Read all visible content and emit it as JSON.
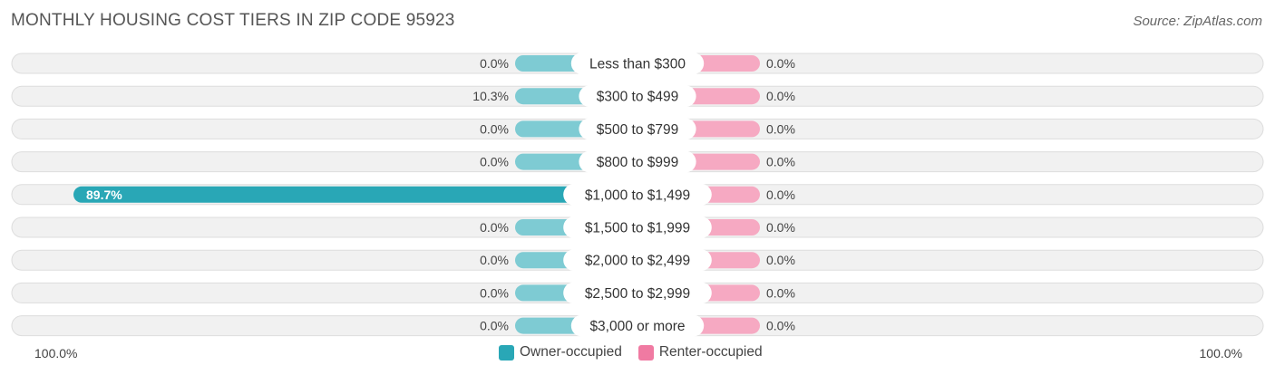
{
  "title": "MONTHLY HOUSING COST TIERS IN ZIP CODE 95923",
  "source": "Source: ZipAtlas.com",
  "axis": {
    "left_label": "100.0%",
    "right_label": "100.0%"
  },
  "legend": {
    "owner_label": "Owner-occupied",
    "renter_label": "Renter-occupied"
  },
  "colors": {
    "owner": "#29a7b6",
    "owner_light": "#7ecbd3",
    "renter": "#f07aa2",
    "renter_light": "#f6a9c2",
    "row_bg": "#f1f1f1",
    "row_border": "#dddddd"
  },
  "chart_data": {
    "type": "bar",
    "orientation": "horizontal-diverging",
    "xlim": [
      -100,
      100
    ],
    "categories": [
      "Less than $300",
      "$300 to $499",
      "$500 to $799",
      "$800 to $999",
      "$1,000 to $1,499",
      "$1,500 to $1,999",
      "$2,000 to $2,499",
      "$2,500 to $2,999",
      "$3,000 or more"
    ],
    "series": [
      {
        "name": "Owner-occupied",
        "values": [
          0.0,
          10.3,
          0.0,
          0.0,
          89.7,
          0.0,
          0.0,
          0.0,
          0.0
        ],
        "labels": [
          "0.0%",
          "10.3%",
          "0.0%",
          "0.0%",
          "89.7%",
          "0.0%",
          "0.0%",
          "0.0%",
          "0.0%"
        ]
      },
      {
        "name": "Renter-occupied",
        "values": [
          0.0,
          0.0,
          0.0,
          0.0,
          0.0,
          0.0,
          0.0,
          0.0,
          0.0
        ],
        "labels": [
          "0.0%",
          "0.0%",
          "0.0%",
          "0.0%",
          "0.0%",
          "0.0%",
          "0.0%",
          "0.0%",
          "0.0%"
        ]
      }
    ]
  }
}
